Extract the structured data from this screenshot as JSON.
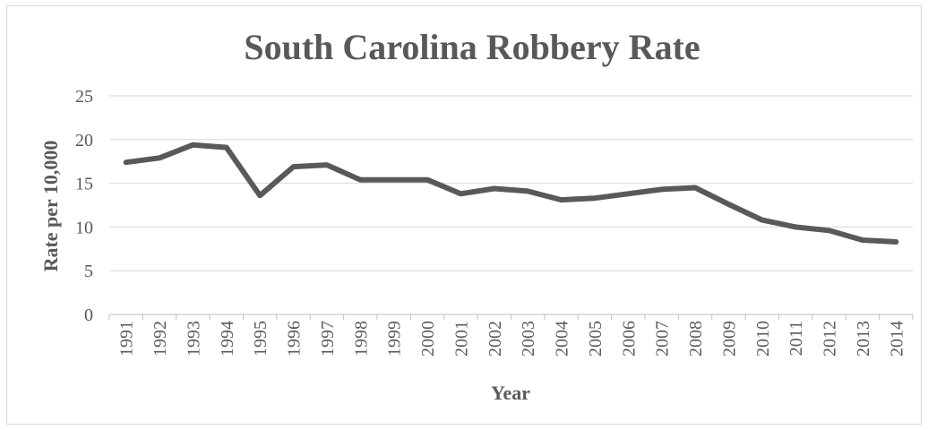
{
  "chart_data": {
    "type": "line",
    "title": "South Carolina Robbery Rate",
    "xlabel": "Year",
    "ylabel": "Rate per 10,000",
    "ylim": [
      0,
      25
    ],
    "yticks": [
      0,
      5,
      10,
      15,
      20,
      25
    ],
    "grid": true,
    "legend": "none",
    "categories": [
      "1991",
      "1992",
      "1993",
      "1994",
      "1995",
      "1996",
      "1997",
      "1998",
      "1999",
      "2000",
      "2001",
      "2002",
      "2003",
      "2004",
      "2005",
      "2006",
      "2007",
      "2008",
      "2009",
      "2010",
      "2011",
      "2012",
      "2013",
      "2014"
    ],
    "series": [
      {
        "color": "#595959",
        "values": [
          17.4,
          17.9,
          19.4,
          19.1,
          13.6,
          16.9,
          17.1,
          15.4,
          15.4,
          15.4,
          13.8,
          14.4,
          14.1,
          13.1,
          13.3,
          13.8,
          14.3,
          14.5,
          12.6,
          10.8,
          10.0,
          9.6,
          8.5,
          8.3
        ]
      }
    ]
  }
}
